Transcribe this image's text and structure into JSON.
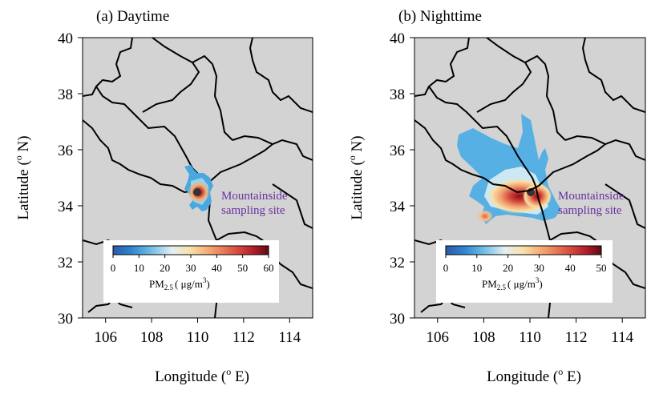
{
  "panels": [
    {
      "id": "a",
      "title": "(a)  Daytime",
      "site_label_1": "Mountainside",
      "site_label_2": "sampling site",
      "colorbar": {
        "ticks": [
          "0",
          "10",
          "20",
          "30",
          "40",
          "50",
          "60"
        ],
        "label_main": "PM",
        "label_sub": "2.5",
        "label_unit": "( μg/m",
        "label_sup": "3",
        "label_close": ")"
      }
    },
    {
      "id": "b",
      "title": "(b)  Nighttime",
      "site_label_1": "Mountainside",
      "site_label_2": "sampling site",
      "colorbar": {
        "ticks": [
          "0",
          "10",
          "20",
          "30",
          "40",
          "50"
        ],
        "label_main": "PM",
        "label_sub": "2.5",
        "label_unit": "( μg/m",
        "label_sup": "3",
        "label_close": ")"
      }
    }
  ],
  "axes": {
    "xlabel_main": "Longitude (",
    "xlabel_sup": "o",
    "xlabel_end": " E)",
    "ylabel_main": "Latitude (",
    "ylabel_sup": "o",
    "ylabel_end": " N)",
    "xticks": [
      "106",
      "108",
      "110",
      "112",
      "114"
    ],
    "yticks": [
      "40",
      "38",
      "36",
      "34",
      "32",
      "30"
    ]
  },
  "colors": {
    "land": "#d3d3d3",
    "site_label": "#6a2fa0",
    "site_point": "#333333"
  }
}
